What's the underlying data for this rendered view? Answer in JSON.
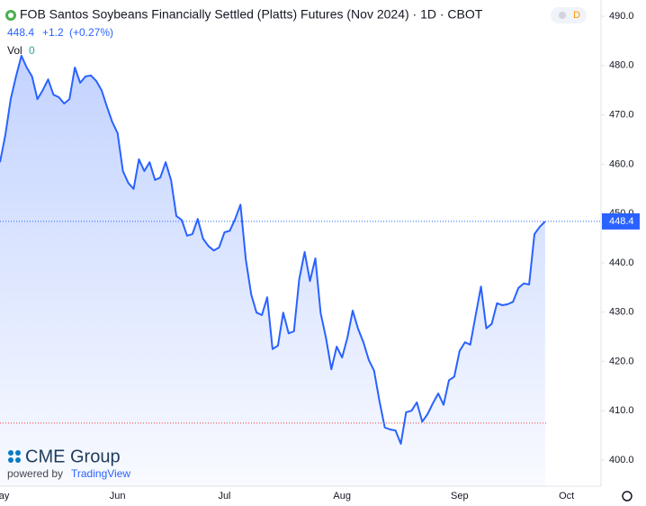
{
  "header": {
    "change": "+1.2",
    "change_pct": "(+0.27%)",
    "volume_label": "Vol",
    "volume": 0,
    "interval_badge": "D",
    "brand": "CME Group",
    "powered_by": "powered by",
    "platform": "TradingView"
  },
  "chart_data": {
    "type": "line",
    "title": "FOB Santos Soybeans Financially Settled (Platts) Futures (Nov 2024) · 1D · CBOT",
    "color": "#2962ff",
    "last_price": 448.4,
    "reference_line": 407.5,
    "categories": [
      "May",
      null,
      null,
      null,
      null,
      null,
      null,
      null,
      null,
      null,
      null,
      null,
      null,
      null,
      null,
      null,
      null,
      null,
      null,
      null,
      null,
      null,
      "Jun",
      null,
      null,
      null,
      null,
      null,
      null,
      null,
      null,
      null,
      null,
      null,
      null,
      null,
      null,
      null,
      null,
      null,
      null,
      null,
      "Jul",
      null,
      null,
      null,
      null,
      null,
      null,
      null,
      null,
      null,
      null,
      null,
      null,
      null,
      null,
      null,
      null,
      null,
      null,
      null,
      null,
      null,
      "Aug",
      null,
      null,
      null,
      null,
      null,
      null,
      null,
      null,
      null,
      null,
      null,
      null,
      null,
      null,
      null,
      null,
      null,
      null,
      null,
      null,
      null,
      "Sep",
      null,
      null,
      null,
      null,
      null,
      null,
      null,
      null,
      null,
      null,
      null,
      null,
      null,
      null,
      null,
      null,
      null,
      null,
      null,
      "Oct",
      null,
      null,
      null,
      null,
      null,
      null
    ],
    "values": [
      460.4,
      465.9,
      473.2,
      477.8,
      482,
      479.6,
      477.8,
      473.2,
      475,
      477.2,
      474.1,
      473.6,
      472.3,
      473.2,
      479.6,
      476.5,
      477.8,
      478,
      476.9,
      475,
      471.7,
      468.6,
      466.3,
      458.6,
      456.2,
      455,
      461,
      458.6,
      460.4,
      456.8,
      457.3,
      460.4,
      456.8,
      449.5,
      448.7,
      445.5,
      445.8,
      448.9,
      444.9,
      443.4,
      442.5,
      443.1,
      446.2,
      446.5,
      448.9,
      451.8,
      440.7,
      433.6,
      429.9,
      429.4,
      433,
      422.5,
      423.2,
      429.9,
      425.7,
      426.1,
      436.7,
      442.2,
      436.3,
      440.9,
      429.8,
      424.8,
      418.4,
      423,
      420.8,
      424.8,
      430.3,
      426.6,
      423.9,
      420.3,
      418.1,
      412,
      406.6,
      406.2,
      406,
      403.3,
      409.7,
      410,
      411.7,
      407.8,
      409.3,
      411.5,
      413.5,
      411.2,
      416.2,
      416.9,
      422.1,
      423.9,
      423.4,
      429.4,
      435.2,
      426.7,
      427.6,
      431.8,
      431.4,
      431.6,
      432.1,
      434.9,
      435.8,
      435.6,
      445.8,
      447.3,
      448.4,
      null,
      null,
      null,
      null,
      null,
      null,
      null,
      null,
      null,
      null
    ],
    "ylim": [
      394.7,
      493.3
    ],
    "yticks": [
      {
        "value": 400,
        "label": "400.0"
      },
      {
        "value": 410,
        "label": "410.0"
      },
      {
        "value": 420,
        "label": "420.0"
      },
      {
        "value": 430,
        "label": "430.0"
      },
      {
        "value": 440,
        "label": "440.0"
      },
      {
        "value": 450,
        "label": "450.0"
      },
      {
        "value": 460,
        "label": "460.0"
      },
      {
        "value": 470,
        "label": "470.0"
      },
      {
        "value": 480,
        "label": "480.0"
      },
      {
        "value": 490,
        "label": "490.0"
      }
    ],
    "grid": false
  }
}
